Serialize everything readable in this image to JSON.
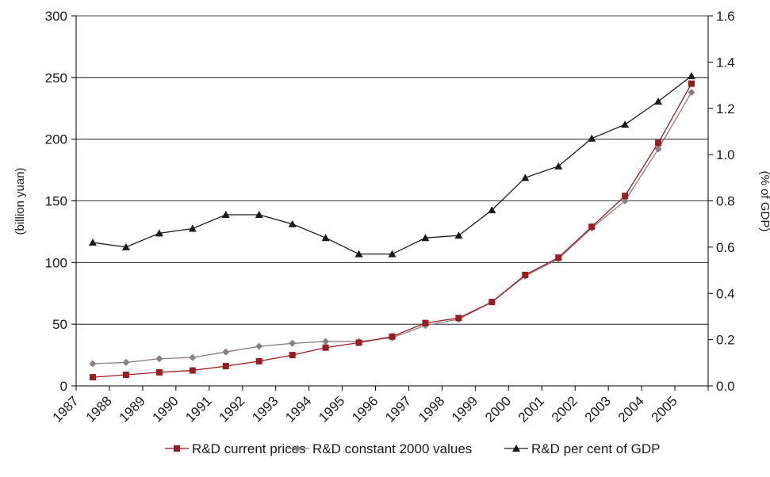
{
  "chart_data": {
    "type": "line",
    "title": "",
    "x": [
      "1987",
      "1988",
      "1989",
      "1990",
      "1991",
      "1992",
      "1993",
      "1994",
      "1995",
      "1996",
      "1997",
      "1998",
      "1999",
      "2000",
      "2001",
      "2002",
      "2003",
      "2004",
      "2005"
    ],
    "y_left": {
      "label": "(billion yuan)",
      "ylim": [
        0,
        300
      ],
      "ticks": [
        "0",
        "50",
        "100",
        "150",
        "200",
        "250",
        "300"
      ]
    },
    "y_right": {
      "label": "(% of GDP)",
      "ylim": [
        0,
        1.6
      ],
      "ticks": [
        "0.0",
        "0.2",
        "0.4",
        "0.6",
        "0.8",
        "1.0",
        "1.2",
        "1.4",
        "1.6"
      ]
    },
    "grid": "horizontal",
    "legend_position": "bottom",
    "series": [
      {
        "name": "R&D current prices",
        "axis": "left",
        "color": "#9b1b1f",
        "marker": "square",
        "values": [
          7,
          9,
          11,
          12.5,
          16,
          20,
          25,
          31,
          35,
          40,
          51,
          55,
          68,
          90,
          104,
          129,
          154,
          197,
          245
        ]
      },
      {
        "name": "R&D constant 2000 values",
        "axis": "left",
        "color": "#8c7f7f",
        "marker": "diamond",
        "values": [
          18,
          19,
          22,
          23,
          27.5,
          32,
          34.5,
          36,
          36,
          39,
          49,
          54,
          68,
          89,
          103,
          128,
          150,
          192,
          238
        ]
      },
      {
        "name": "R&D per cent of GDP",
        "axis": "right",
        "color": "#1a1a1a",
        "marker": "triangle",
        "values": [
          0.62,
          0.6,
          0.66,
          0.68,
          0.74,
          0.74,
          0.7,
          0.64,
          0.57,
          0.57,
          0.64,
          0.65,
          0.76,
          0.9,
          0.95,
          1.07,
          1.13,
          1.23,
          1.34
        ]
      }
    ]
  }
}
